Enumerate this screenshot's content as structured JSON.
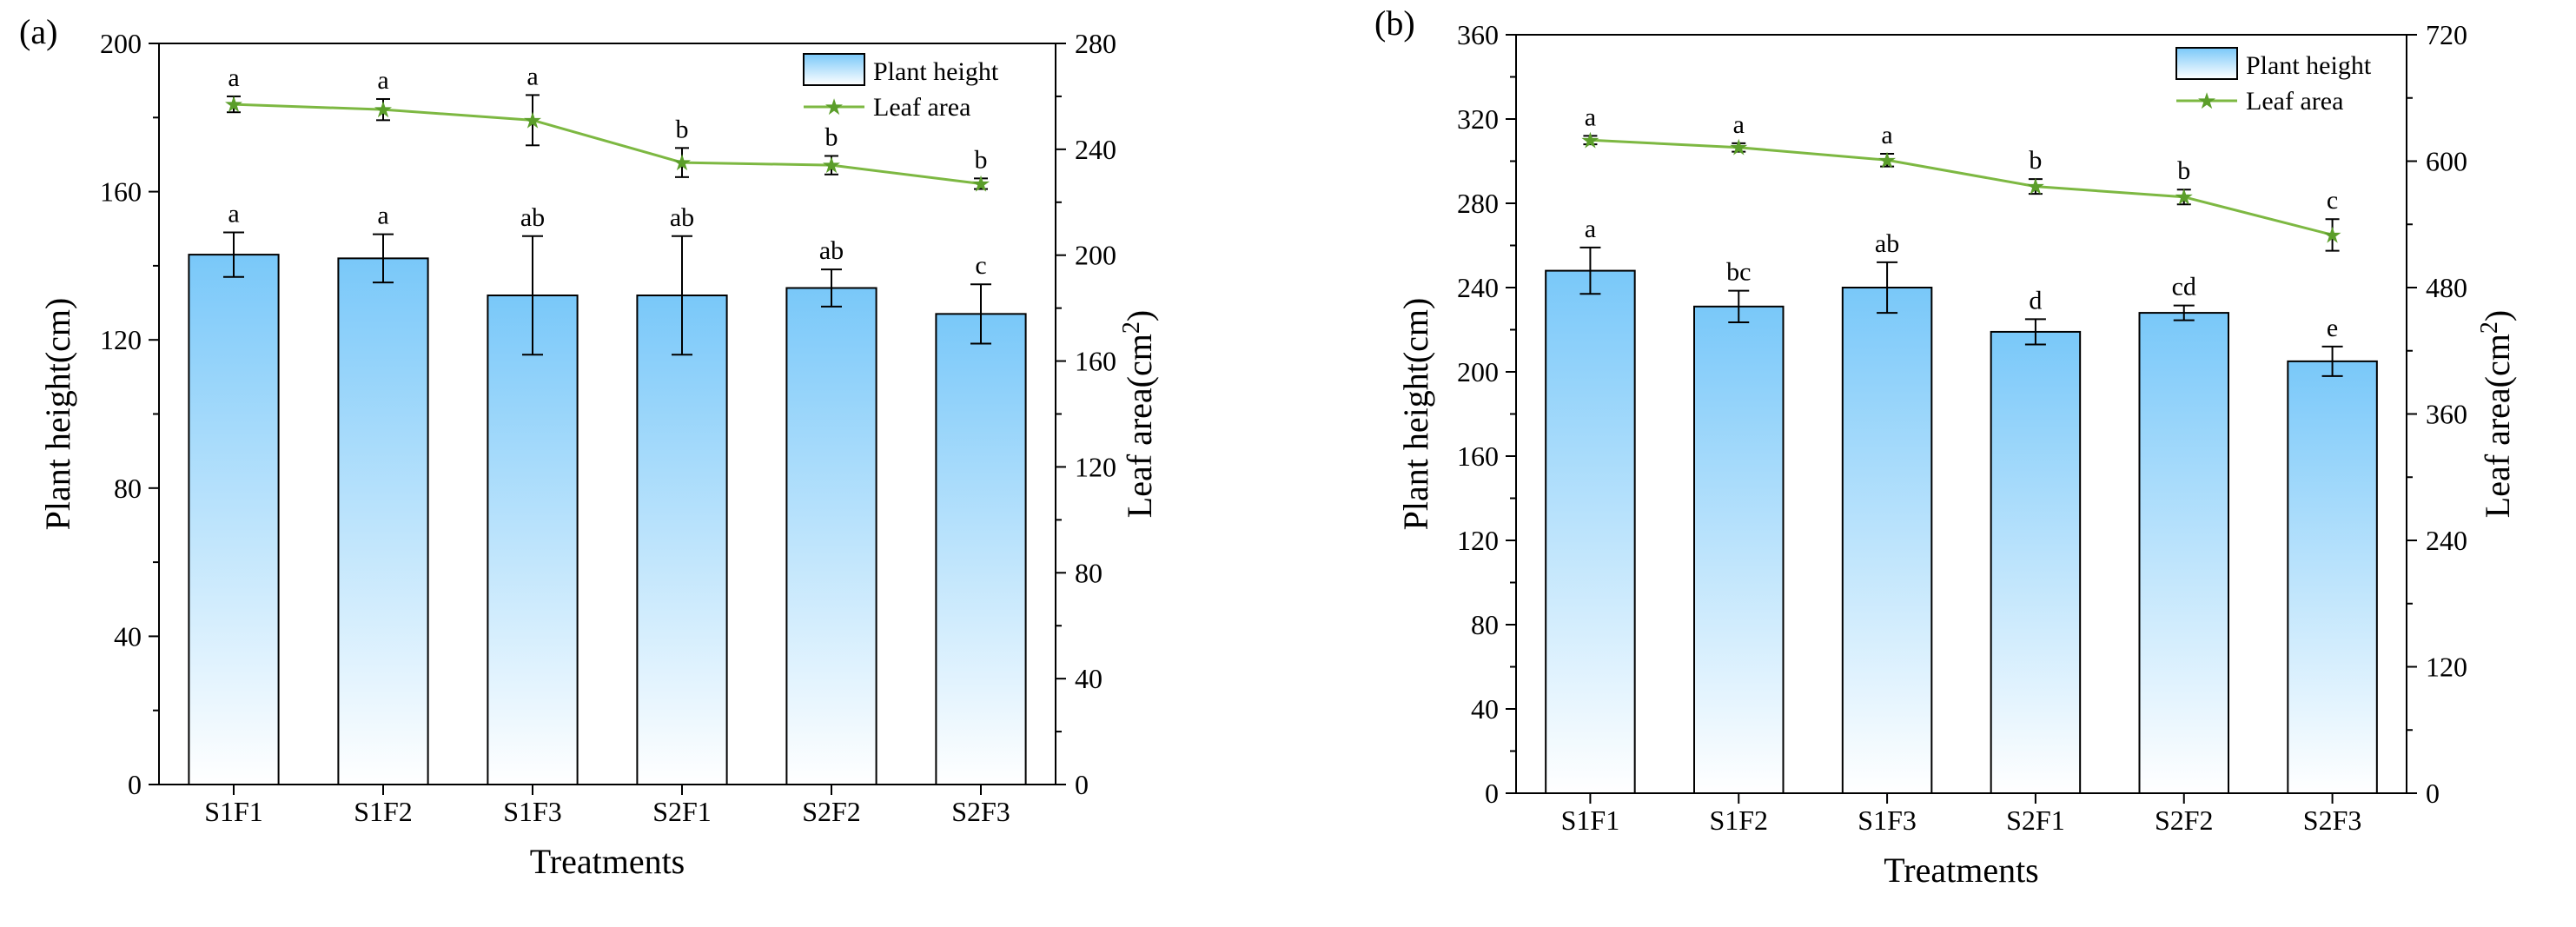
{
  "chart_data": [
    {
      "panel_label": "(a)",
      "type": "bar",
      "title": "",
      "xlabel": "Treatments",
      "ylabel": "Plant height(cm)",
      "y2label_main": "Leaf area(cm",
      "y2label_sup": "2",
      "y2label_close": ")",
      "ylim": [
        0,
        200
      ],
      "yticks": [
        0,
        40,
        80,
        120,
        160,
        200
      ],
      "y2lim": [
        0,
        280
      ],
      "y2ticks": [
        0,
        40,
        80,
        120,
        160,
        200,
        240,
        280
      ],
      "categories": [
        "S1F1",
        "S1F2",
        "S1F3",
        "S2F1",
        "S2F2",
        "S2F3"
      ],
      "legend_position": "top-right",
      "series": [
        {
          "name": "Plant height",
          "kind": "bar",
          "axis": "left",
          "values": [
            143,
            142,
            132,
            132,
            134,
            127
          ],
          "errors": [
            6,
            6.5,
            16,
            16,
            5,
            8
          ],
          "labels": [
            "a",
            "a",
            "ab",
            "ab",
            "ab",
            "c"
          ]
        },
        {
          "name": "Leaf area",
          "kind": "line",
          "axis": "right",
          "values": [
            257,
            255,
            251,
            235,
            234,
            227
          ],
          "errors": [
            3,
            4,
            9.5,
            5.5,
            3.5,
            2
          ],
          "labels": [
            "a",
            "a",
            "a",
            "b",
            "b",
            "b"
          ]
        }
      ]
    },
    {
      "panel_label": "(b)",
      "type": "bar",
      "title": "",
      "xlabel": "Treatments",
      "ylabel": "Plant height(cm)",
      "y2label_main": "Leaf area(cm",
      "y2label_sup": "2",
      "y2label_close": ")",
      "ylim": [
        0,
        360
      ],
      "yticks": [
        0,
        40,
        80,
        120,
        160,
        200,
        240,
        280,
        320,
        360
      ],
      "y2lim": [
        0,
        720
      ],
      "y2ticks": [
        0,
        120,
        240,
        360,
        480,
        600,
        720
      ],
      "categories": [
        "S1F1",
        "S1F2",
        "S1F3",
        "S2F1",
        "S2F2",
        "S2F3"
      ],
      "legend_position": "top-right",
      "series": [
        {
          "name": "Plant height",
          "kind": "bar",
          "axis": "left",
          "values": [
            248,
            231,
            240,
            219,
            228,
            205
          ],
          "errors": [
            11,
            7.5,
            12,
            6,
            3.5,
            7
          ],
          "labels": [
            "a",
            "bc",
            "ab",
            "d",
            "cd",
            "e"
          ]
        },
        {
          "name": "Leaf area",
          "kind": "line",
          "axis": "right",
          "values": [
            620,
            613,
            601,
            576,
            566,
            530
          ],
          "errors": [
            4,
            4,
            6,
            7,
            7,
            15
          ],
          "labels": [
            "a",
            "a",
            "a",
            "b",
            "b",
            "c"
          ]
        }
      ]
    }
  ],
  "colors": {
    "bar_top": "#79C8F9",
    "bar_bottom": "#FFFFFF",
    "line": "#7DB842",
    "marker": "#5B9E2A",
    "axis": "#000000"
  }
}
